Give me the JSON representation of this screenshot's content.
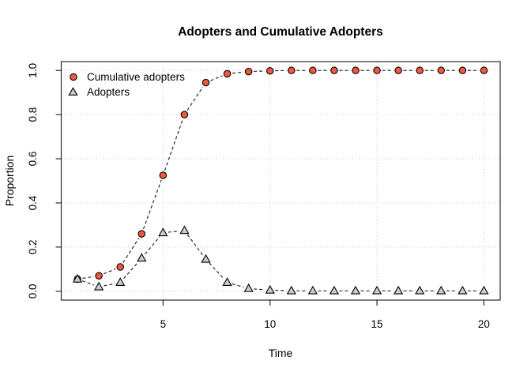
{
  "chart_data": {
    "type": "line",
    "title": "Adopters and Cumulative Adopters",
    "xlabel": "Time",
    "ylabel": "Proportion",
    "x": [
      1,
      2,
      3,
      4,
      5,
      6,
      7,
      8,
      9,
      10,
      11,
      12,
      13,
      14,
      15,
      16,
      17,
      18,
      19,
      20
    ],
    "series": [
      {
        "name": "Cumulative adopters",
        "marker": "circle",
        "marker_fill": "#ee5940",
        "values": [
          0.055,
          0.07,
          0.11,
          0.26,
          0.525,
          0.8,
          0.945,
          0.985,
          0.995,
          0.998,
          1.0,
          1.0,
          1.0,
          1.0,
          1.0,
          1.0,
          1.0,
          1.0,
          1.0,
          1.0
        ]
      },
      {
        "name": "Adopters",
        "marker": "triangle",
        "marker_fill": "#cccccc",
        "values": [
          0.055,
          0.02,
          0.04,
          0.15,
          0.265,
          0.275,
          0.145,
          0.04,
          0.012,
          0.005,
          0.002,
          0.002,
          0.002,
          0.002,
          0.002,
          0.002,
          0.002,
          0.002,
          0.002,
          0.002
        ]
      }
    ],
    "xticks": [
      5,
      10,
      15,
      20
    ],
    "xtick_labels": [
      "5",
      "10",
      "15",
      "20"
    ],
    "yticks": [
      0.0,
      0.2,
      0.4,
      0.6,
      0.8,
      1.0
    ],
    "ytick_labels": [
      "0.0",
      "0.2",
      "0.4",
      "0.6",
      "0.8",
      "1.0"
    ],
    "xlim": [
      0.24,
      20.76
    ],
    "ylim": [
      -0.04,
      1.04
    ],
    "grid": "dotted",
    "legend_position": "top-left",
    "line_style": "dashed",
    "line_color": "#1a1a1a",
    "grid_color": "#d6d6d6",
    "box_color": "#2b2b2b",
    "marker_stroke": "#000000",
    "background": "#ffffff"
  }
}
